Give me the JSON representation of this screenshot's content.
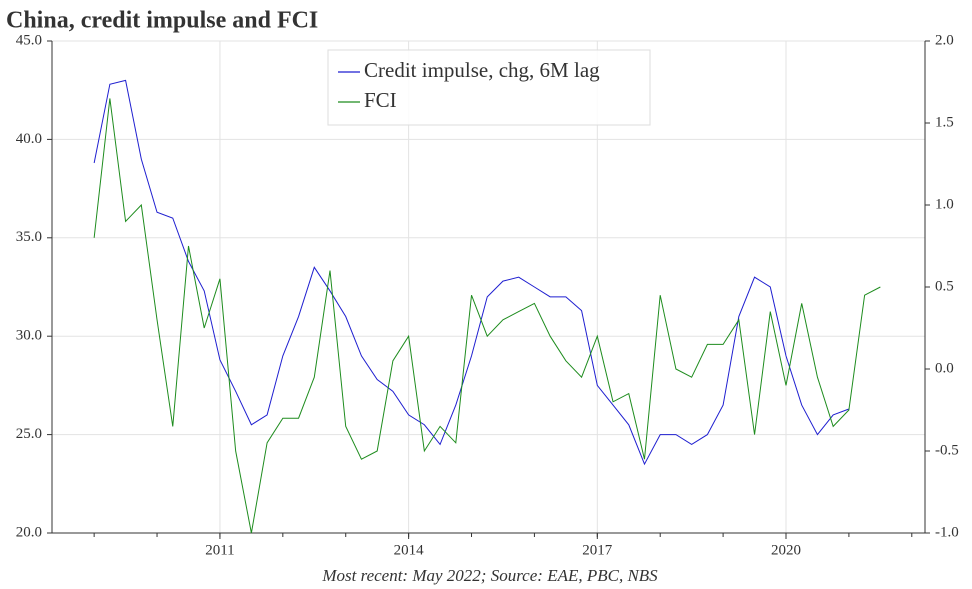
{
  "chart_data": {
    "type": "line",
    "title": "China, credit impulse and FCI",
    "source": "Most recent: May 2022; Source: EAE, PBC, NBS",
    "x": [
      2009.0,
      2009.25,
      2009.5,
      2009.75,
      2010.0,
      2010.25,
      2010.5,
      2010.75,
      2011.0,
      2011.25,
      2011.5,
      2011.75,
      2012.0,
      2012.25,
      2012.5,
      2012.75,
      2013.0,
      2013.25,
      2013.5,
      2013.75,
      2014.0,
      2014.25,
      2014.5,
      2014.75,
      2015.0,
      2015.25,
      2015.5,
      2015.75,
      2016.0,
      2016.25,
      2016.5,
      2016.75,
      2017.0,
      2017.25,
      2017.5,
      2017.75,
      2018.0,
      2018.25,
      2018.5,
      2018.75,
      2019.0,
      2019.25,
      2019.5,
      2019.75,
      2020.0,
      2020.25,
      2020.5,
      2020.75,
      2021.0,
      2021.25,
      2021.5
    ],
    "series": [
      {
        "name": "Credit impulse, chg, 6M lag",
        "color": "#1f1fd0",
        "axis": "y",
        "values": [
          38.8,
          42.8,
          43.0,
          39.0,
          36.3,
          36.0,
          33.8,
          32.3,
          28.8,
          27.2,
          25.5,
          26.0,
          29.0,
          31.0,
          33.5,
          32.3,
          31.0,
          29.0,
          27.8,
          27.2,
          26.0,
          25.5,
          24.5,
          26.5,
          29.0,
          32.0,
          32.8,
          33.0,
          32.5,
          32.0,
          32.0,
          31.3,
          27.5,
          26.5,
          25.5,
          23.5,
          25.0,
          25.0,
          24.5,
          25.0,
          26.5,
          31.0,
          33.0,
          32.5,
          29.0,
          26.5,
          25.0,
          26.0,
          26.3,
          null,
          null
        ]
      },
      {
        "name": "FCI",
        "color": "#1e8c1e",
        "axis": "y2",
        "values": [
          0.8,
          1.65,
          0.9,
          1.0,
          0.3,
          -0.35,
          0.75,
          0.25,
          0.55,
          -0.5,
          -1.0,
          -0.45,
          -0.3,
          -0.3,
          -0.05,
          0.6,
          -0.35,
          -0.55,
          -0.5,
          0.05,
          0.2,
          -0.5,
          -0.35,
          -0.45,
          0.45,
          0.2,
          0.3,
          0.35,
          0.4,
          0.2,
          0.05,
          -0.05,
          0.2,
          -0.2,
          -0.15,
          -0.55,
          0.45,
          0,
          -0.05,
          0.15,
          0.15,
          0.3,
          -0.4,
          0.35,
          -0.1,
          0.4,
          -0.05,
          -0.35,
          -0.25,
          0.45,
          0.5
        ]
      }
    ],
    "xlim": [
      2008.33,
      2022.21
    ],
    "xticks": [
      2011,
      2014,
      2017,
      2020
    ],
    "xminorticks": [
      2009,
      2010,
      2011,
      2012,
      2013,
      2014,
      2015,
      2016,
      2017,
      2018,
      2019,
      2020,
      2021,
      2022
    ],
    "ylim": [
      20,
      45
    ],
    "yticks": [
      {
        "value": 20,
        "label": "20.0"
      },
      {
        "value": 25,
        "label": "25.0"
      },
      {
        "value": 30,
        "label": "30.0"
      },
      {
        "value": 35,
        "label": "35.0"
      },
      {
        "value": 40,
        "label": "40.0"
      },
      {
        "value": 45,
        "label": "45.0"
      }
    ],
    "y2lim": [
      -1,
      2
    ],
    "y2ticks": [
      {
        "value": -1,
        "label": "-1.0"
      },
      -0.5,
      {
        "value": 0,
        "label": "0.0"
      },
      0.5,
      {
        "value": 1,
        "label": "1.0"
      },
      1.5,
      {
        "value": 2,
        "label": "2.0"
      }
    ],
    "grid": true,
    "legend": "upper-center"
  }
}
